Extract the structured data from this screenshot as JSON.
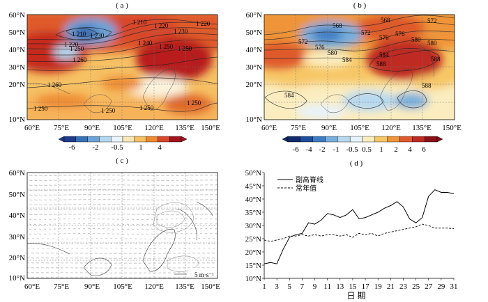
{
  "panels": {
    "a": {
      "label": "( a )"
    },
    "b": {
      "label": "( b )"
    },
    "c": {
      "label": "( c )"
    },
    "d": {
      "label": "( d )"
    }
  },
  "map_axes": {
    "lat_ticks": [
      "10°N",
      "20°N",
      "30°N",
      "40°N",
      "50°N",
      "60°N"
    ],
    "lon_ticks": [
      "60°E",
      "75°E",
      "90°E",
      "105°E",
      "120°E",
      "135°E",
      "150°E"
    ]
  },
  "colorbar_a": {
    "colors": [
      "#1f3c8c",
      "#3670b8",
      "#6aa3d8",
      "#b2d7f0",
      "#e9f4fb",
      "#fbe7b4",
      "#f6c063",
      "#ee8a33",
      "#d9472a",
      "#a1141e"
    ],
    "labels": [
      "-6",
      "-2",
      "-0.5",
      "1",
      "4"
    ]
  },
  "colorbar_b": {
    "colors": [
      "#102a6b",
      "#1f4c9c",
      "#3d7cc4",
      "#77aedc",
      "#b7d9f0",
      "#e6f3fb",
      "#fbedc0",
      "#f7c766",
      "#ef9438",
      "#df5a2b",
      "#bf2a22",
      "#8a0f16"
    ],
    "labels": [
      "-6",
      "-4",
      "-2",
      "-1",
      "-0.5",
      "0.5",
      "1",
      "2",
      "4",
      "6"
    ]
  },
  "contours_a": [
    "1 210",
    "1 220",
    "1 230",
    "1 220",
    "1 210",
    "1 220",
    "1 230",
    "1 240",
    "1 250",
    "1 250",
    "1 250",
    "1 260",
    "1 260",
    "1 250",
    "1 250",
    "1 250",
    "1 250"
  ],
  "contours_b": [
    "568",
    "572",
    "576",
    "580",
    "572",
    "576",
    "580",
    "584",
    "588",
    "584",
    "588",
    "568",
    "572",
    "576",
    "580",
    "584",
    "588"
  ],
  "vector_legend": "5 m·s⁻¹",
  "chart_data": {
    "type": "line",
    "x": [
      1,
      2,
      3,
      4,
      5,
      6,
      7,
      8,
      9,
      10,
      11,
      12,
      13,
      14,
      15,
      16,
      17,
      18,
      19,
      20,
      21,
      22,
      23,
      24,
      25,
      26,
      27,
      28,
      29,
      30,
      31
    ],
    "series": [
      {
        "name": "副高脊线",
        "values": [
          15.5,
          16,
          15.5,
          21,
          25.5,
          26.5,
          27,
          31,
          30.5,
          32,
          34.5,
          34,
          33,
          34,
          36,
          32.5,
          33,
          34,
          35,
          36.5,
          37.5,
          39,
          37,
          32.5,
          31,
          33,
          41,
          43.5,
          42.5,
          42.5,
          42
        ]
      },
      {
        "name": "常年值",
        "values": [
          24.5,
          24,
          24.5,
          25,
          26,
          26,
          26.5,
          26,
          26.5,
          26,
          26.5,
          26.5,
          26,
          26.5,
          25.5,
          27,
          26.5,
          27,
          26,
          27,
          27.5,
          28,
          28.5,
          29,
          29.5,
          30.5,
          30,
          29,
          29,
          29,
          28.8
        ]
      }
    ],
    "xticks": [
      "1",
      "3",
      "5",
      "7",
      "9",
      "11",
      "13",
      "15",
      "17",
      "19",
      "21",
      "23",
      "25",
      "27",
      "29",
      "31"
    ],
    "yticks": [
      "10°N",
      "15°N",
      "20°N",
      "25°N",
      "30°N",
      "35°N",
      "40°N",
      "45°N",
      "50°N"
    ],
    "xlabel": "日  期",
    "ylim": [
      10,
      50
    ],
    "xlim": [
      1,
      31
    ]
  }
}
